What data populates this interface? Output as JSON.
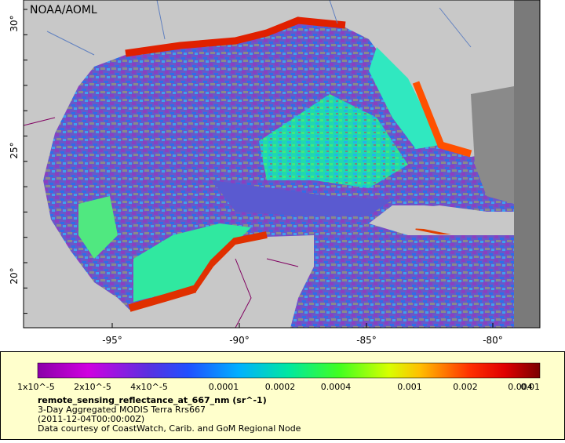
{
  "map": {
    "credit": "NOAA/AOML",
    "lat_labels": [
      "30°",
      "25°",
      "20°"
    ],
    "lon_labels": [
      "-95°",
      "-90°",
      "-85°",
      "-80°"
    ]
  },
  "legend": {
    "tick_labels": [
      "1x10^-5",
      "2x10^-5",
      "4x10^-5",
      "0.0001",
      "0.0002",
      "0.0004",
      "0.001",
      "0.002",
      "0.004",
      "0.01"
    ],
    "title": "remote_sensing_reflectance_at_667_nm (sr^-1)",
    "lines": [
      "3-Day Aggregated MODIS Terra Rrs667",
      "(2011-12-04T00:00:00Z)",
      "Data courtesy of CoastWatch, Carib. and GoM Regional Node"
    ]
  }
}
